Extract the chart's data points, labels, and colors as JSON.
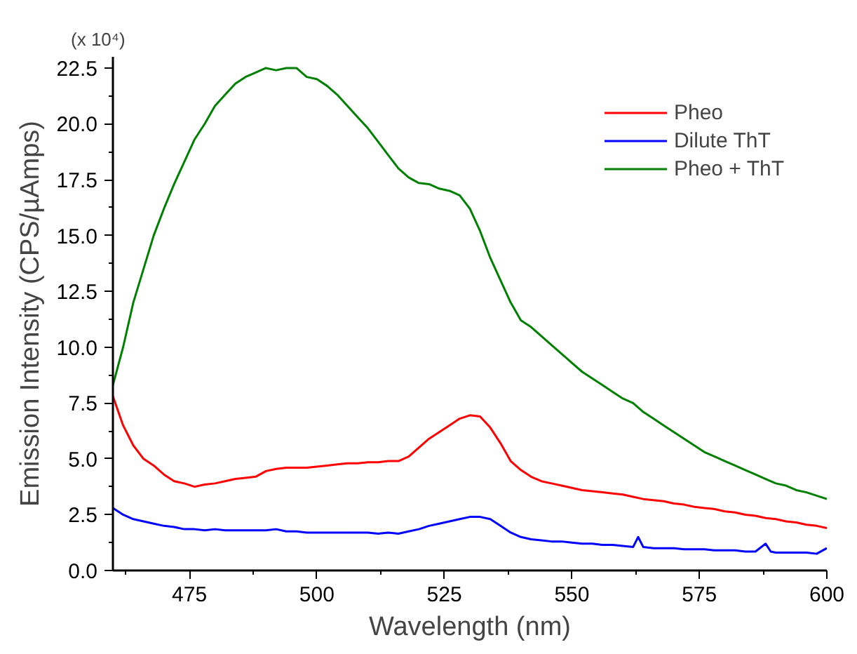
{
  "chart_data": {
    "type": "line",
    "xlabel": "Wavelength (nm)",
    "ylabel": "Emission Intensity (CPS/µAmps)",
    "annotations": [
      "(x 10⁴)"
    ],
    "xlim": [
      460,
      600
    ],
    "xticks": [
      {
        "value": 462.5,
        "label": null
      },
      475,
      {
        "value": 487.5,
        "label": null
      },
      500,
      {
        "value": 512.5,
        "label": null
      },
      525,
      {
        "value": 537.5,
        "label": null
      },
      550,
      {
        "value": 562.5,
        "label": null
      },
      575,
      {
        "value": 587.5,
        "label": null
      },
      600
    ],
    "ylim": [
      0,
      23
    ],
    "yticks": [
      {
        "value": 0,
        "label": "0.0"
      },
      {
        "value": 1.25,
        "label": null
      },
      2.5,
      {
        "value": 3.75,
        "label": null
      },
      {
        "value": 5,
        "label": "5.0"
      },
      {
        "value": 6.25,
        "label": null
      },
      7.5,
      {
        "value": 8.75,
        "label": null
      },
      {
        "value": 10,
        "label": "10.0"
      },
      {
        "value": 11.25,
        "label": null
      },
      12.5,
      {
        "value": 13.75,
        "label": null
      },
      {
        "value": 15,
        "label": "15.0"
      },
      {
        "value": 16.25,
        "label": null
      },
      17.5,
      {
        "value": 18.75,
        "label": null
      },
      {
        "value": 20,
        "label": "20.0"
      },
      {
        "value": 21.25,
        "label": null
      },
      22.5
    ],
    "grid": false,
    "legend": "top right",
    "line_style": "solid",
    "marker": "none",
    "x": [
      460,
      462,
      464,
      466,
      468,
      470,
      472,
      474,
      476,
      478,
      480,
      482,
      484,
      486,
      488,
      490,
      492,
      494,
      496,
      498,
      500,
      502,
      504,
      506,
      508,
      510,
      512,
      514,
      516,
      518,
      520,
      522,
      524,
      526,
      528,
      530,
      532,
      534,
      536,
      538,
      540,
      542,
      544,
      546,
      548,
      550,
      552,
      554,
      556,
      558,
      560,
      562,
      564,
      566,
      568,
      570,
      572,
      574,
      576,
      578,
      580,
      582,
      584,
      586,
      588,
      590,
      592,
      594,
      596,
      598,
      600
    ],
    "series": [
      {
        "name": "Pheo",
        "color": "#ff0000",
        "values": [
          7.8,
          6.5,
          5.6,
          5.0,
          4.7,
          4.3,
          4.0,
          3.9,
          3.75,
          3.85,
          3.9,
          4.0,
          4.1,
          4.15,
          4.2,
          4.45,
          4.55,
          4.6,
          4.6,
          4.6,
          4.65,
          4.7,
          4.75,
          4.8,
          4.8,
          4.85,
          4.85,
          4.9,
          4.9,
          5.1,
          5.5,
          5.9,
          6.2,
          6.5,
          6.8,
          6.95,
          6.9,
          6.4,
          5.7,
          4.9,
          4.5,
          4.2,
          4.0,
          3.9,
          3.8,
          3.7,
          3.6,
          3.55,
          3.5,
          3.45,
          3.4,
          3.3,
          3.2,
          3.15,
          3.1,
          3.0,
          2.95,
          2.85,
          2.8,
          2.75,
          2.65,
          2.6,
          2.5,
          2.45,
          2.35,
          2.3,
          2.2,
          2.15,
          2.05,
          2.0,
          1.9
        ]
      },
      {
        "name": "Dilute ThT",
        "color": "#0000ff",
        "x": [
          460,
          462,
          464,
          466,
          468,
          470,
          472,
          474,
          476,
          478,
          480,
          482,
          484,
          486,
          488,
          490,
          492,
          494,
          496,
          498,
          500,
          502,
          504,
          506,
          508,
          510,
          512,
          514,
          516,
          518,
          520,
          522,
          524,
          526,
          528,
          530,
          532,
          534,
          536,
          538,
          540,
          542,
          544,
          546,
          548,
          550,
          552,
          554,
          556,
          558,
          560,
          562,
          563,
          564,
          566,
          568,
          570,
          572,
          574,
          576,
          578,
          580,
          582,
          584,
          586,
          588,
          589,
          590,
          592,
          594,
          596,
          598,
          600
        ],
        "values": [
          2.8,
          2.5,
          2.3,
          2.2,
          2.1,
          2.0,
          1.95,
          1.85,
          1.85,
          1.8,
          1.85,
          1.8,
          1.8,
          1.8,
          1.8,
          1.8,
          1.85,
          1.75,
          1.75,
          1.7,
          1.7,
          1.7,
          1.7,
          1.7,
          1.7,
          1.7,
          1.65,
          1.7,
          1.65,
          1.75,
          1.85,
          2.0,
          2.1,
          2.2,
          2.3,
          2.4,
          2.4,
          2.3,
          2.0,
          1.7,
          1.5,
          1.4,
          1.35,
          1.3,
          1.3,
          1.25,
          1.2,
          1.2,
          1.15,
          1.15,
          1.1,
          1.05,
          1.5,
          1.05,
          1.0,
          1.0,
          1.0,
          0.95,
          0.95,
          0.95,
          0.9,
          0.9,
          0.9,
          0.85,
          0.85,
          1.2,
          0.85,
          0.8,
          0.8,
          0.8,
          0.8,
          0.75,
          1.0
        ]
      },
      {
        "name": "Pheo + ThT",
        "color": "#008000",
        "values": [
          8.3,
          10.0,
          12.0,
          13.5,
          15.0,
          16.2,
          17.3,
          18.3,
          19.3,
          20.0,
          20.8,
          21.3,
          21.8,
          22.1,
          22.3,
          22.5,
          22.4,
          22.5,
          22.5,
          22.1,
          22.0,
          21.7,
          21.3,
          20.8,
          20.3,
          19.8,
          19.2,
          18.6,
          18.0,
          17.6,
          17.35,
          17.3,
          17.1,
          17.0,
          16.8,
          16.2,
          15.2,
          14.0,
          13.0,
          12.0,
          11.2,
          10.9,
          10.5,
          10.1,
          9.7,
          9.3,
          8.9,
          8.6,
          8.3,
          8.0,
          7.7,
          7.5,
          7.1,
          6.8,
          6.5,
          6.2,
          5.9,
          5.6,
          5.3,
          5.1,
          4.9,
          4.7,
          4.5,
          4.3,
          4.1,
          3.9,
          3.8,
          3.6,
          3.5,
          3.35,
          3.2
        ]
      }
    ]
  }
}
